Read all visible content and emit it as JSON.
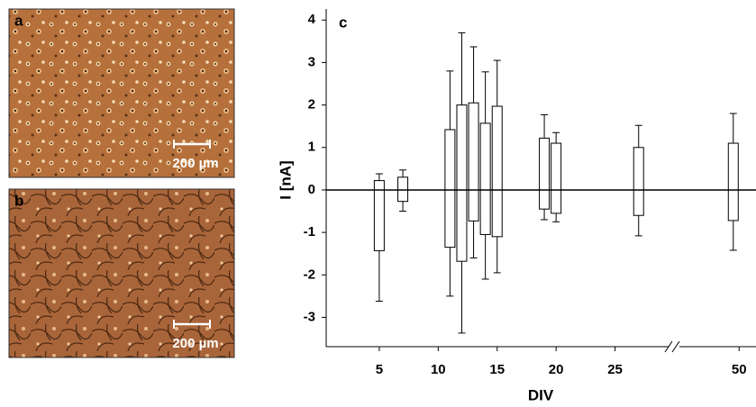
{
  "panels": [
    {
      "label": "a",
      "scale": "200 µm"
    },
    {
      "label": "b",
      "scale": "200 µm"
    }
  ],
  "chart_data": {
    "type": "box",
    "panel_label": "c",
    "x_label": "DIV",
    "y_label": "I [nA]",
    "x": [
      5,
      7,
      11,
      12,
      13,
      14,
      15,
      19,
      20,
      27,
      49.5
    ],
    "min": [
      -2.62,
      -0.5,
      -2.5,
      -3.37,
      -1.6,
      -2.1,
      -1.95,
      -0.7,
      -0.75,
      -1.08,
      -1.42
    ],
    "q1": [
      -1.43,
      -0.27,
      -1.35,
      -1.68,
      -0.73,
      -1.05,
      -1.1,
      -0.45,
      -0.55,
      -0.6,
      -0.72
    ],
    "q3": [
      0.22,
      0.3,
      1.42,
      2.0,
      2.05,
      1.57,
      1.97,
      1.22,
      1.1,
      1.0,
      1.1
    ],
    "max": [
      0.38,
      0.47,
      2.8,
      3.7,
      3.37,
      2.78,
      3.05,
      1.77,
      1.35,
      1.52,
      1.8
    ],
    "color": "#000000",
    "xlim": [
      0.5,
      51.3
    ],
    "axis_break": [
      30,
      44.4
    ],
    "xticks": [
      5,
      10,
      15,
      20,
      25,
      50
    ],
    "ylim": [
      -3.69,
      4.26
    ],
    "yticks": [
      -3,
      -2,
      -1,
      0,
      1,
      2,
      3,
      4
    ],
    "hline": 0
  }
}
